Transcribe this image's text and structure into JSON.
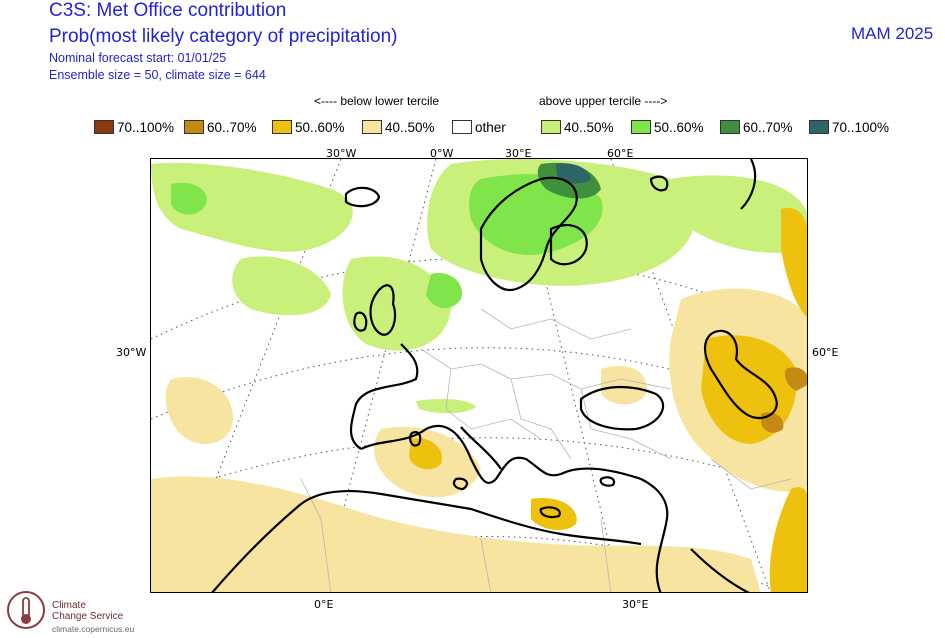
{
  "header": {
    "title": "C3S: Met Office contribution",
    "subtitle": "Prob(most likely category of precipitation)",
    "forecast_start": "Nominal forecast start: 01/01/25",
    "ensemble": "Ensemble size = 50, climate size = 644",
    "season": "MAM 2025"
  },
  "legend": {
    "below_header": "<---- below lower tercile",
    "above_header": "above upper tercile ---->",
    "items": [
      {
        "label": "70..100%",
        "color": "#8b3a0f"
      },
      {
        "label": "60..70%",
        "color": "#c48a14"
      },
      {
        "label": "50..60%",
        "color": "#efc10f"
      },
      {
        "label": "40..50%",
        "color": "#f6e4a0"
      },
      {
        "label": "other",
        "color": "#ffffff"
      },
      {
        "label": "40..50%",
        "color": "#c9f07a"
      },
      {
        "label": "50..60%",
        "color": "#7fe54a"
      },
      {
        "label": "60..70%",
        "color": "#3f8f3c"
      },
      {
        "label": "70..100%",
        "color": "#2e6566"
      }
    ]
  },
  "map_labels": {
    "top": [
      "30°W",
      "0°W",
      "30°E",
      "60°E"
    ],
    "left": "30°W",
    "right": "60°E",
    "bottom": [
      "0°E",
      "30°E"
    ]
  },
  "logo": {
    "line1": "Climate",
    "line2": "Change Service",
    "url": "climate.copernicus.eu"
  }
}
